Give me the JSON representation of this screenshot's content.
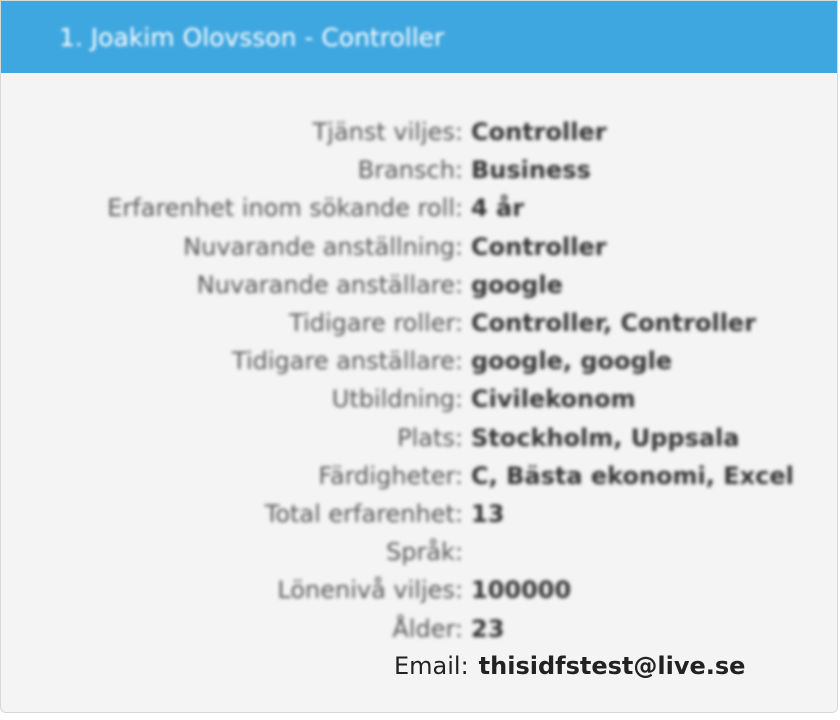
{
  "card": {
    "title": "1. Joakim Olovsson - Controller"
  },
  "details": [
    {
      "label": "Tjänst viljes:",
      "value": "Controller"
    },
    {
      "label": "Bransch:",
      "value": "Business"
    },
    {
      "label": "Erfarenhet inom sökande roll:",
      "value": "4 år"
    },
    {
      "label": "Nuvarande anställning:",
      "value": "Controller"
    },
    {
      "label": "Nuvarande anställare:",
      "value": "google"
    },
    {
      "label": "Tidigare roller:",
      "value": "Controller, Controller"
    },
    {
      "label": "Tidigare anställare:",
      "value": "google, google"
    },
    {
      "label": "Utbildning:",
      "value": "Civilekonom"
    },
    {
      "label": "Plats:",
      "value": "Stockholm, Uppsala"
    },
    {
      "label": "Färdigheter:",
      "value": "C, Bästa ekonomi, Excel"
    },
    {
      "label": "Total erfarenhet:",
      "value": "13"
    },
    {
      "label": "Språk:",
      "value": ""
    },
    {
      "label": "Lönenivå viljes:",
      "value": "100000"
    },
    {
      "label": "Ålder:",
      "value": "23"
    }
  ],
  "email": {
    "label": "Email:",
    "value": "thisidfstest@live.se"
  },
  "colors": {
    "header": "#3fa7e0",
    "card_bg": "#f4f4f4",
    "label_text": "#555555",
    "value_text": "#333333"
  }
}
